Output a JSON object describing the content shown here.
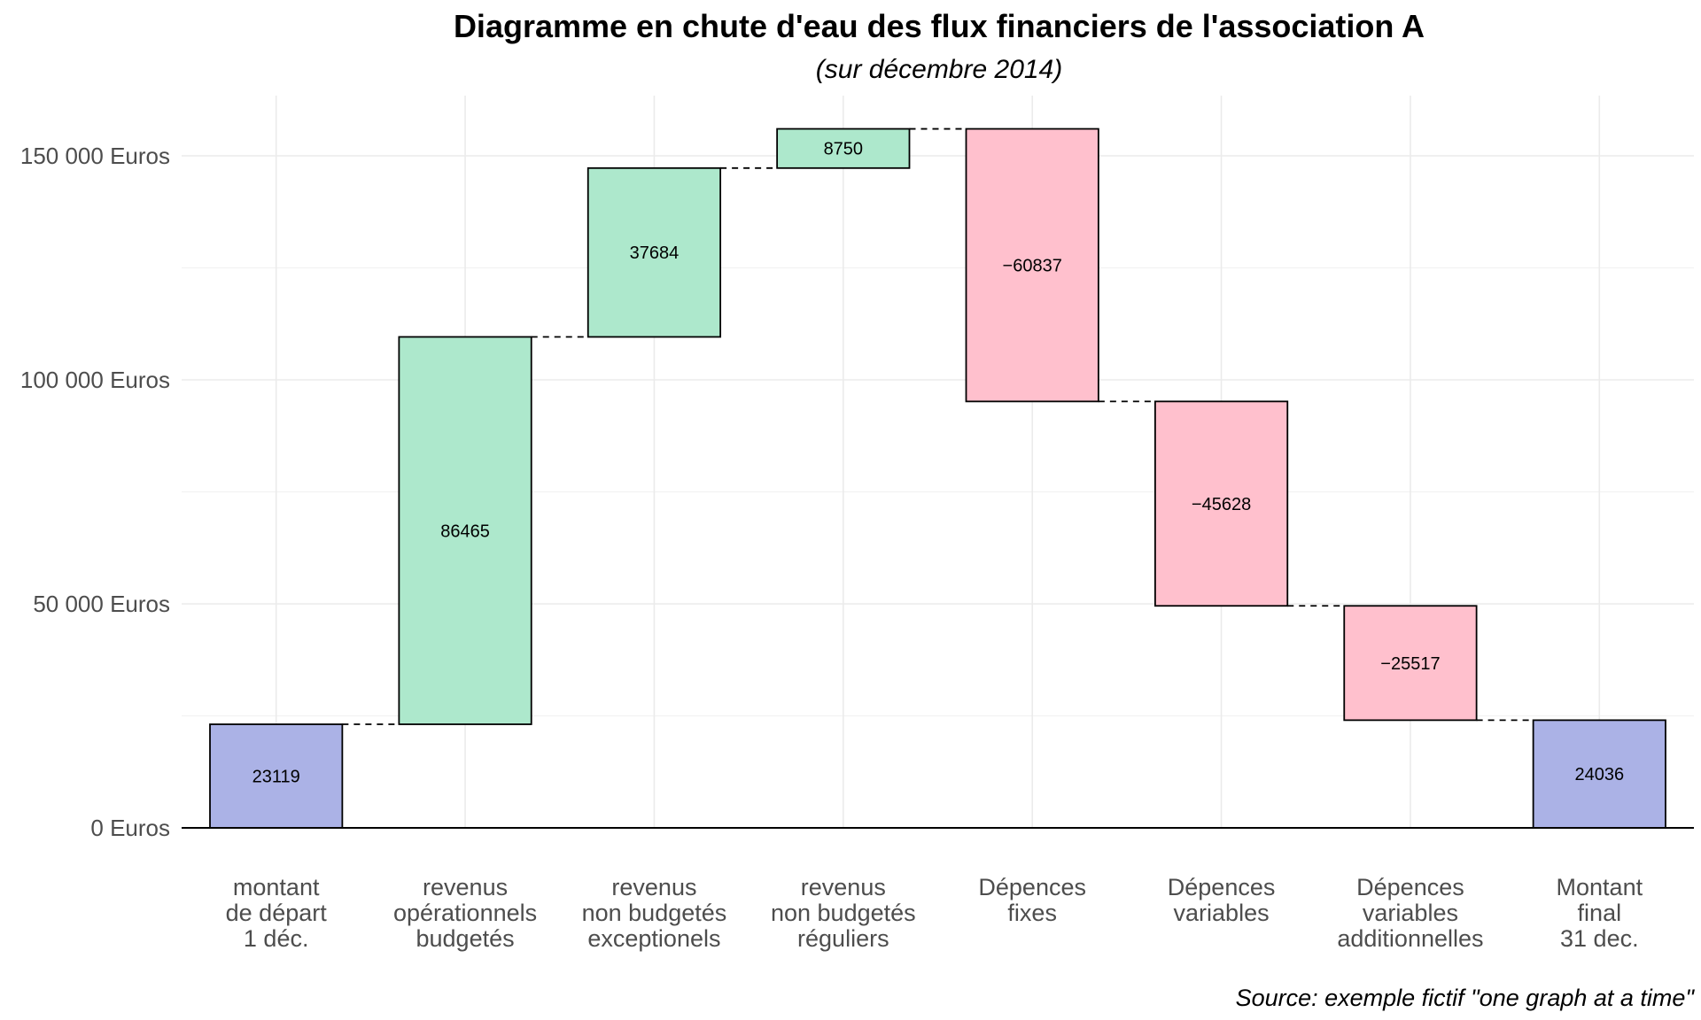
{
  "chart_data": {
    "type": "waterfall",
    "title": "Diagramme en chute d'eau des flux financiers de l'association A",
    "subtitle": "(sur décembre 2014)",
    "caption": "Source: exemple fictif \"one graph at a time\"",
    "ylim": [
      0,
      160000
    ],
    "yticks": [
      {
        "value": 0,
        "label": "0 Euros"
      },
      {
        "value": 50000,
        "label": "50 000 Euros"
      },
      {
        "value": 100000,
        "label": "100 000 Euros"
      },
      {
        "value": 150000,
        "label": "150 000 Euros"
      }
    ],
    "grid": true,
    "legend": "none",
    "colors": {
      "total": "#abb2e6",
      "increase": "#ade8cc",
      "decrease": "#ffc0cd"
    },
    "bars": [
      {
        "category": [
          "montant",
          "de départ",
          "1 déc."
        ],
        "kind": "total",
        "start": 0,
        "end": 23119,
        "label": "23119"
      },
      {
        "category": [
          "revenus",
          "opérationnels",
          "budgetés"
        ],
        "kind": "increase",
        "start": 23119,
        "end": 109584,
        "label": "86465"
      },
      {
        "category": [
          "revenus",
          "non budgetés",
          "exceptionels"
        ],
        "kind": "increase",
        "start": 109584,
        "end": 147268,
        "label": "37684"
      },
      {
        "category": [
          "revenus",
          "non budgetés",
          "réguliers"
        ],
        "kind": "increase",
        "start": 147268,
        "end": 156018,
        "label": "8750"
      },
      {
        "category": [
          "Dépences",
          "fixes"
        ],
        "kind": "decrease",
        "start": 156018,
        "end": 95181,
        "label": "−60837"
      },
      {
        "category": [
          "Dépences",
          "variables"
        ],
        "kind": "decrease",
        "start": 95181,
        "end": 49553,
        "label": "−45628"
      },
      {
        "category": [
          "Dépences",
          "variables",
          "additionnelles"
        ],
        "kind": "decrease",
        "start": 49553,
        "end": 24036,
        "label": "−25517"
      },
      {
        "category": [
          "Montant",
          "final",
          "31 dec."
        ],
        "kind": "total",
        "start": 0,
        "end": 24036,
        "label": "24036"
      }
    ]
  }
}
